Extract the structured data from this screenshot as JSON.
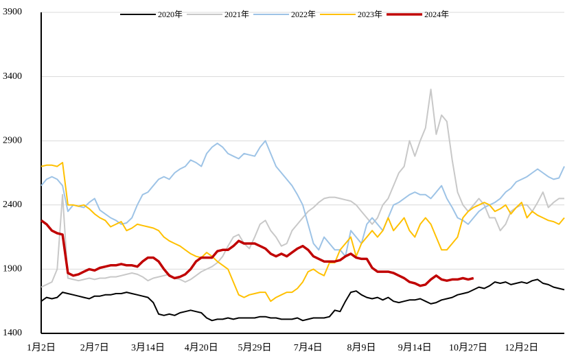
{
  "chart_data": {
    "type": "line",
    "categories": [
      "1月2日",
      null,
      null,
      null,
      null,
      null,
      null,
      null,
      null,
      null,
      "2月7日",
      null,
      null,
      null,
      null,
      null,
      null,
      null,
      null,
      null,
      "3月14日",
      null,
      null,
      null,
      null,
      null,
      null,
      null,
      null,
      null,
      "4月20日",
      null,
      null,
      null,
      null,
      null,
      null,
      null,
      null,
      null,
      "5月29日",
      null,
      null,
      null,
      null,
      null,
      null,
      null,
      null,
      null,
      "7月4日",
      null,
      null,
      null,
      null,
      null,
      null,
      null,
      null,
      null,
      "8月9日",
      null,
      null,
      null,
      null,
      null,
      null,
      null,
      null,
      null,
      "9月14日",
      null,
      null,
      null,
      null,
      null,
      null,
      null,
      null,
      null,
      "10月27日",
      null,
      null,
      null,
      null,
      null,
      null,
      null,
      null,
      null,
      "12月2日",
      null,
      null,
      null,
      null,
      null,
      null,
      null,
      null
    ],
    "series": [
      {
        "name": "2020年",
        "color": "#000000",
        "width": 2,
        "values": [
          1650,
          1680,
          1670,
          1680,
          1720,
          1710,
          1700,
          1690,
          1680,
          1670,
          1690,
          1690,
          1700,
          1700,
          1710,
          1710,
          1720,
          1710,
          1700,
          1690,
          1680,
          1640,
          1550,
          1540,
          1550,
          1540,
          1560,
          1570,
          1580,
          1570,
          1560,
          1520,
          1500,
          1510,
          1510,
          1520,
          1510,
          1520,
          1520,
          1520,
          1520,
          1530,
          1530,
          1520,
          1520,
          1510,
          1510,
          1510,
          1520,
          1500,
          1510,
          1520,
          1520,
          1520,
          1530,
          1580,
          1570,
          1650,
          1720,
          1730,
          1700,
          1680,
          1670,
          1680,
          1660,
          1680,
          1650,
          1640,
          1650,
          1660,
          1660,
          1670,
          1650,
          1630,
          1640,
          1660,
          1670,
          1680,
          1700,
          1710,
          1720,
          1740,
          1760,
          1750,
          1770,
          1800,
          1790,
          1800,
          1780,
          1790,
          1800,
          1790,
          1810,
          1820,
          1790,
          1780,
          1760,
          1750,
          1740
        ]
      },
      {
        "name": "2021年",
        "color": "#c8c8c8",
        "width": 2,
        "values": [
          1760,
          1780,
          1800,
          1900,
          2480,
          1830,
          1820,
          1810,
          1820,
          1830,
          1820,
          1830,
          1830,
          1840,
          1840,
          1850,
          1860,
          1870,
          1860,
          1840,
          1810,
          1830,
          1840,
          1850,
          1860,
          1830,
          1820,
          1800,
          1820,
          1850,
          1880,
          1900,
          1920,
          1950,
          2000,
          2080,
          2150,
          2170,
          2100,
          2060,
          2150,
          2250,
          2280,
          2200,
          2150,
          2080,
          2100,
          2200,
          2250,
          2300,
          2350,
          2380,
          2420,
          2450,
          2460,
          2460,
          2450,
          2440,
          2430,
          2400,
          2350,
          2300,
          2250,
          2300,
          2400,
          2450,
          2550,
          2650,
          2700,
          2900,
          2780,
          2900,
          3000,
          3300,
          2950,
          3100,
          3050,
          2750,
          2500,
          2400,
          2350,
          2400,
          2450,
          2400,
          2300,
          2300,
          2200,
          2250,
          2350,
          2380,
          2400,
          2400,
          2350,
          2420,
          2500,
          2380,
          2420,
          2450,
          2450
        ]
      },
      {
        "name": "2022年",
        "color": "#9dc3e6",
        "width": 2,
        "values": [
          2550,
          2600,
          2620,
          2600,
          2550,
          2350,
          2400,
          2390,
          2380,
          2420,
          2450,
          2360,
          2330,
          2300,
          2280,
          2250,
          2260,
          2300,
          2400,
          2480,
          2500,
          2550,
          2600,
          2620,
          2600,
          2650,
          2680,
          2700,
          2750,
          2730,
          2700,
          2800,
          2850,
          2880,
          2850,
          2800,
          2780,
          2760,
          2800,
          2790,
          2780,
          2850,
          2900,
          2800,
          2700,
          2650,
          2600,
          2550,
          2480,
          2400,
          2250,
          2100,
          2050,
          2150,
          2100,
          2050,
          2050,
          2000,
          2200,
          2150,
          2100,
          2250,
          2300,
          2250,
          2200,
          2300,
          2400,
          2420,
          2450,
          2480,
          2500,
          2480,
          2480,
          2450,
          2500,
          2550,
          2450,
          2380,
          2300,
          2280,
          2250,
          2300,
          2350,
          2380,
          2400,
          2420,
          2450,
          2500,
          2530,
          2580,
          2600,
          2620,
          2650,
          2680,
          2650,
          2620,
          2600,
          2610,
          2700
        ]
      },
      {
        "name": "2023年",
        "color": "#ffc000",
        "width": 2,
        "values": [
          2700,
          2710,
          2710,
          2700,
          2730,
          2400,
          2400,
          2390,
          2400,
          2370,
          2330,
          2300,
          2280,
          2230,
          2250,
          2270,
          2200,
          2220,
          2250,
          2240,
          2230,
          2220,
          2200,
          2150,
          2120,
          2100,
          2080,
          2050,
          2020,
          2000,
          1990,
          2030,
          2000,
          1960,
          1930,
          1900,
          1800,
          1700,
          1680,
          1700,
          1710,
          1720,
          1720,
          1650,
          1680,
          1700,
          1720,
          1720,
          1750,
          1800,
          1880,
          1900,
          1870,
          1850,
          1950,
          1950,
          2050,
          2100,
          2150,
          2000,
          2100,
          2150,
          2200,
          2150,
          2200,
          2300,
          2200,
          2250,
          2300,
          2200,
          2150,
          2250,
          2300,
          2250,
          2150,
          2050,
          2050,
          2100,
          2150,
          2300,
          2350,
          2380,
          2400,
          2420,
          2400,
          2350,
          2370,
          2400,
          2330,
          2380,
          2420,
          2300,
          2350,
          2320,
          2300,
          2280,
          2270,
          2250,
          2300
        ]
      },
      {
        "name": "2024年",
        "color": "#c00000",
        "width": 3.5,
        "values": [
          2280,
          2250,
          2200,
          2180,
          2170,
          1870,
          1850,
          1860,
          1880,
          1900,
          1890,
          1910,
          1920,
          1930,
          1930,
          1940,
          1930,
          1930,
          1920,
          1960,
          1990,
          1990,
          1960,
          1900,
          1850,
          1830,
          1840,
          1860,
          1900,
          1960,
          1990,
          1990,
          1990,
          2040,
          2050,
          2050,
          2080,
          2120,
          2100,
          2100,
          2100,
          2080,
          2060,
          2020,
          2000,
          2020,
          2000,
          2030,
          2060,
          2080,
          2050,
          2000,
          1980,
          1960,
          1960,
          1960,
          1970,
          2000,
          2020,
          1990,
          1980,
          1980,
          1910,
          1880,
          1880,
          1880,
          1870,
          1850,
          1830,
          1800,
          1790,
          1770,
          1780,
          1820,
          1850,
          1820,
          1810,
          1820,
          1820,
          1830,
          1820,
          1830,
          null,
          null,
          null,
          null,
          null,
          null,
          null,
          null,
          null,
          null,
          null,
          null,
          null,
          null,
          null,
          null,
          null
        ]
      }
    ],
    "ylim": [
      1400,
      3900
    ],
    "yticks": [
      1400,
      1900,
      2400,
      2900,
      3400,
      3900
    ],
    "grid": true,
    "legend": "top"
  }
}
